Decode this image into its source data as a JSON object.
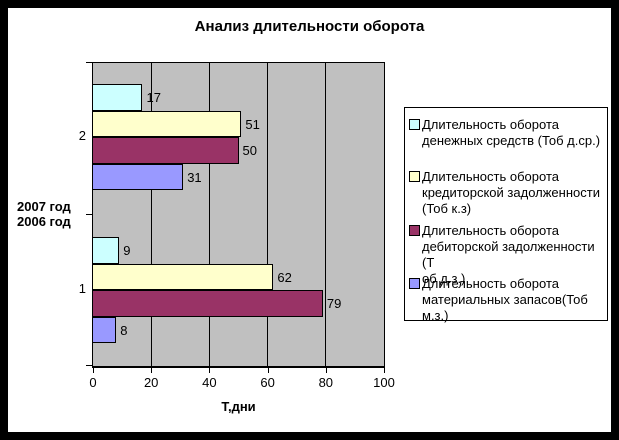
{
  "chart_data": {
    "type": "bar",
    "orientation": "horizontal",
    "title": "Анализ длительности оборота",
    "xlabel": "Т,дни",
    "ylabel": "2007 год 2006 год",
    "categories": [
      "2",
      "1"
    ],
    "series": [
      {
        "name": "Длительность оборота денежных средств (Тоб д.ср.)",
        "color": "#CCFFFF",
        "values": [
          17,
          9
        ]
      },
      {
        "name": "Длительность оборота кредиторской задолженности (Тоб к.з)",
        "color": "#FFFFCC",
        "values": [
          51,
          62
        ]
      },
      {
        "name": "Длительность оборота дебиторской задолженности (Тоб д.з.)",
        "color": "#993366",
        "values": [
          50,
          79
        ]
      },
      {
        "name": "Длительность оборота материальных запасов(Тоб м.з.)",
        "color": "#9999FF",
        "values": [
          31,
          8
        ]
      }
    ],
    "xlim": [
      0,
      100
    ],
    "xticks": [
      0,
      20,
      40,
      60,
      80,
      100
    ],
    "grid": "vertical",
    "legend_position": "right",
    "data_labels": true,
    "plot_background": "#C0C0C0"
  },
  "axes": {
    "y_title_lines": [
      "2007 год",
      "2006 год"
    ]
  },
  "legend": {
    "items": [
      {
        "swatch_color": "#CCFFFF",
        "lines": [
          "Длительность оборота",
          "денежных средств (Тоб д.ср.)"
        ]
      },
      {
        "swatch_color": "#FFFFCC",
        "lines": [
          "Длительность оборота",
          "кредиторской задолженности",
          "(Тоб к.з)"
        ]
      },
      {
        "swatch_color": "#993366",
        "lines": [
          "Длительность оборота",
          "дебиторской задолженности (Т",
          "об д.з.)"
        ]
      },
      {
        "swatch_color": "#9999FF",
        "lines": [
          "Длительность оборота",
          "материальных запасов(Тоб",
          "м.з.)"
        ]
      }
    ]
  }
}
